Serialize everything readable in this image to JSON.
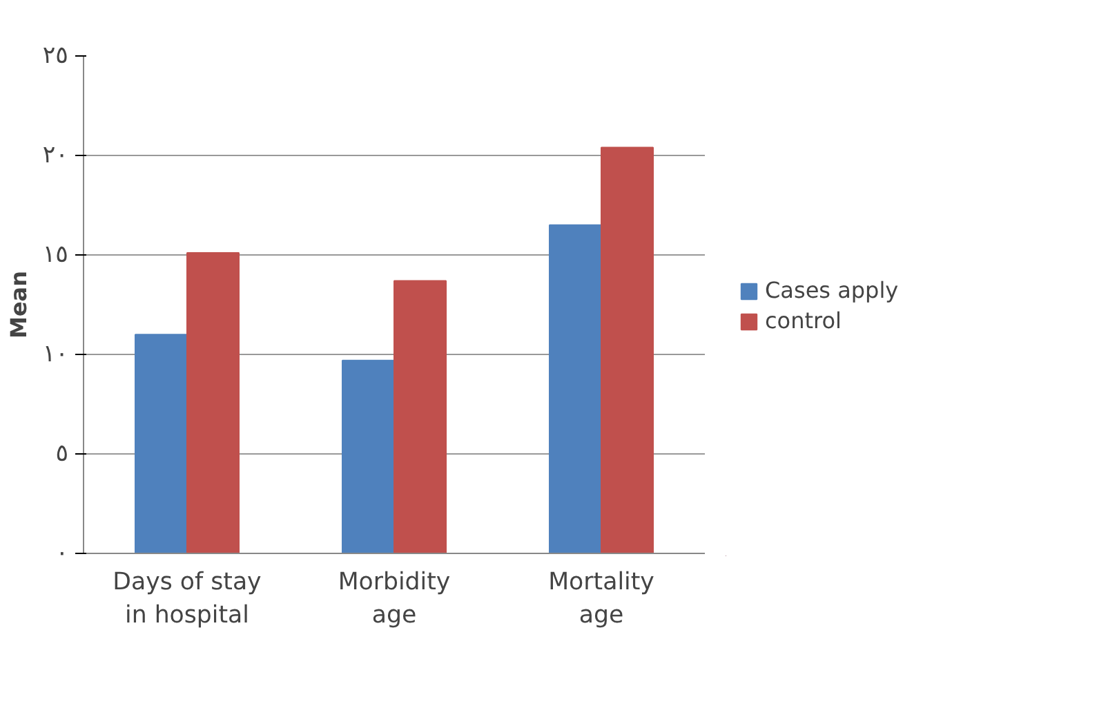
{
  "chart_data": {
    "type": "bar",
    "ylabel": "Mean",
    "categories": [
      "Days of stay in hospital",
      "Morbidity age",
      "Mortality age"
    ],
    "series": [
      {
        "name": "Cases apply",
        "color": "#4f81bd",
        "values": [
          11,
          9.7,
          16.5
        ]
      },
      {
        "name": "control",
        "color": "#c0504d",
        "values": [
          15.1,
          13.7,
          20.4
        ]
      }
    ],
    "ylim": [
      0,
      25
    ],
    "yticks": [
      {
        "value": 0,
        "label": "٠"
      },
      {
        "value": 5,
        "label": "٥"
      },
      {
        "value": 10,
        "label": "١٠"
      },
      {
        "value": 15,
        "label": "١٥"
      },
      {
        "value": 20,
        "label": "٢٠"
      },
      {
        "value": 25,
        "label": "٢٥"
      }
    ],
    "grid": "y",
    "legend": "right"
  }
}
